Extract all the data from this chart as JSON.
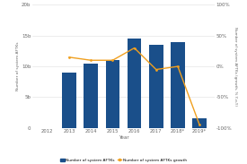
{
  "years": [
    "2012",
    "2013",
    "2014",
    "2015",
    "2016",
    "2017",
    "2018*",
    "2019*"
  ],
  "bar_values": [
    0,
    9,
    10.5,
    11,
    14.5,
    13.5,
    14,
    1.5
  ],
  "growth_values": [
    null,
    15,
    10,
    10,
    30,
    -5,
    0,
    -95
  ],
  "bar_color": "#1a4f8a",
  "line_color": "#f0a020",
  "bar_ylim": [
    0,
    20
  ],
  "bar_yticks": [
    0,
    5,
    10,
    15,
    20
  ],
  "bar_yticklabels": [
    "0",
    "5b",
    "10b",
    "15b",
    "20b"
  ],
  "growth_ylim": [
    -100,
    100
  ],
  "growth_yticks": [
    -100,
    -50,
    0,
    50,
    100
  ],
  "growth_yticklabels": [
    "-100%",
    "-50%",
    "0%",
    "50%",
    "100%"
  ],
  "xlabel": "Year",
  "ylabel_left": "Number of system AFTKs",
  "ylabel_right": "Number of system AFTKs (growth, % Y-o-Y)",
  "legend_bar": "Number of system AFTKs",
  "legend_line": "Number of system AFTKs growth",
  "bg_color": "#ffffff",
  "grid_color": "#dddddd"
}
